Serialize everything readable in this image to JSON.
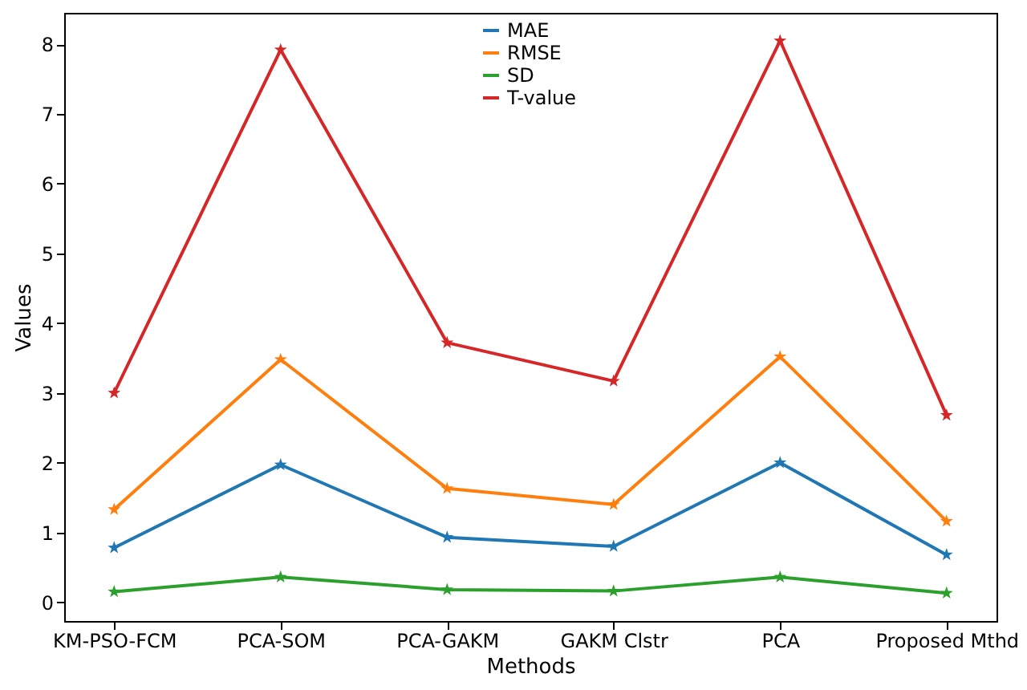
{
  "chart_data": {
    "type": "line",
    "xlabel": "Methods",
    "ylabel": "Values",
    "categories": [
      "KM-PSO-FCM",
      "PCA-SOM",
      "PCA-GAKM",
      "GAKM Clstr",
      "PCA",
      "Proposed Mthd"
    ],
    "series": [
      {
        "name": "MAE",
        "color": "#1f77b4",
        "values": [
          0.78,
          1.97,
          0.93,
          0.8,
          2.0,
          0.68
        ]
      },
      {
        "name": "RMSE",
        "color": "#ff7f0e",
        "values": [
          1.33,
          3.48,
          1.63,
          1.4,
          3.52,
          1.16
        ]
      },
      {
        "name": "SD",
        "color": "#2ca02c",
        "values": [
          0.15,
          0.36,
          0.18,
          0.16,
          0.36,
          0.13
        ]
      },
      {
        "name": "T-value",
        "color": "#d62728",
        "values": [
          3.0,
          7.92,
          3.72,
          3.17,
          8.05,
          2.68
        ]
      }
    ],
    "ylim": [
      -0.27,
      8.45
    ],
    "yticks": [
      0,
      1,
      2,
      3,
      4,
      5,
      6,
      7,
      8
    ],
    "grid": false,
    "legend": "top",
    "marker": "star",
    "line_style": "solid"
  }
}
